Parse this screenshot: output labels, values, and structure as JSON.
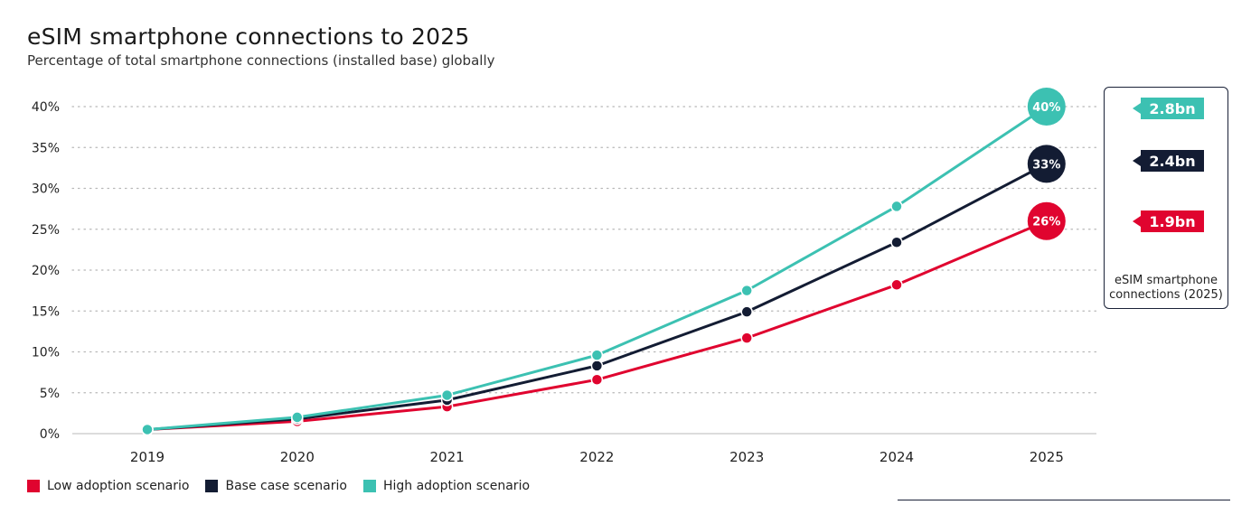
{
  "title": "eSIM smartphone connections to 2025",
  "subtitle": "Percentage of total smartphone connections (installed base) globally",
  "chart_data": {
    "type": "line",
    "x": [
      "2019",
      "2020",
      "2021",
      "2022",
      "2023",
      "2024",
      "2025"
    ],
    "yticks": [
      "0%",
      "5%",
      "10%",
      "15%",
      "20%",
      "25%",
      "30%",
      "35%",
      "40%"
    ],
    "ylim": [
      0,
      40
    ],
    "grid": true,
    "series": [
      {
        "name": "Low adoption scenario",
        "color": "#e0042f",
        "values": [
          0.5,
          1.5,
          3.3,
          6.6,
          11.7,
          18.2,
          26
        ],
        "end_label": "26%"
      },
      {
        "name": "Base case scenario",
        "color": "#131c33",
        "values": [
          0.5,
          1.8,
          4.1,
          8.3,
          14.9,
          23.4,
          33
        ],
        "end_label": "33%"
      },
      {
        "name": "High adoption scenario",
        "color": "#3cc1b2",
        "values": [
          0.5,
          2.0,
          4.7,
          9.6,
          17.5,
          27.8,
          40
        ],
        "end_label": "40%"
      }
    ],
    "legend_position": "bottom-left"
  },
  "side_panel": {
    "tags": [
      {
        "label": "2.8bn",
        "color": "#3cc1b2"
      },
      {
        "label": "2.4bn",
        "color": "#131c33"
      },
      {
        "label": "1.9bn",
        "color": "#e0042f"
      }
    ],
    "caption": "eSIM smartphone connections (2025)"
  }
}
